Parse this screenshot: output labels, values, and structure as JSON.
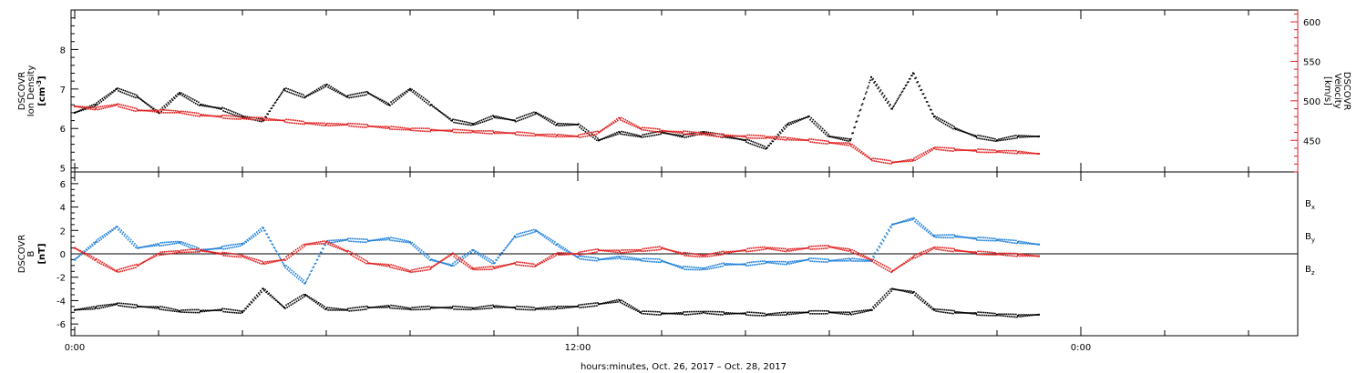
{
  "colors": {
    "axis": "#000000",
    "density": "#000000",
    "velocity": "#e02020",
    "bx": "#000000",
    "by": "#1e7fd8",
    "bz": "#e02020"
  },
  "chart_data": [
    {
      "type": "scatter",
      "panel": "plasma",
      "ylabel_left": [
        "DSCOVR",
        "Ion Density",
        "[cm",
        "-3",
        "]"
      ],
      "ylabel_right": [
        "DSCOVR",
        "Velocity",
        "[km/s]"
      ],
      "ylim_left": [
        4.9,
        9.0
      ],
      "ylim_right": [
        410,
        615
      ],
      "yticks_left": [
        "5",
        "6",
        "7",
        "8"
      ],
      "yticks_right": [
        "450",
        "500",
        "550",
        "600"
      ],
      "series": [
        {
          "name": "Ion Density",
          "axis": "left",
          "x_hours": [
            0,
            0.5,
            1,
            1.5,
            2,
            2.5,
            3,
            3.5,
            4,
            4.5,
            5,
            5.5,
            6,
            6.5,
            7,
            7.5,
            8,
            8.5,
            9,
            9.5,
            10,
            10.5,
            11,
            11.5,
            12,
            12.5,
            13,
            13.5,
            14,
            14.5,
            15,
            15.5,
            16,
            16.5,
            17,
            17.5,
            18,
            18.5,
            19,
            19.5,
            20,
            20.5,
            21,
            21.5,
            22,
            22.5,
            23
          ],
          "y": [
            6.4,
            6.6,
            7.0,
            6.8,
            6.4,
            6.9,
            6.6,
            6.5,
            6.3,
            6.2,
            7.0,
            6.8,
            7.1,
            6.8,
            6.9,
            6.6,
            7.0,
            6.6,
            6.2,
            6.1,
            6.3,
            6.2,
            6.4,
            6.1,
            6.1,
            5.7,
            5.9,
            5.8,
            5.9,
            5.8,
            5.9,
            5.8,
            5.7,
            5.5,
            6.1,
            6.3,
            5.8,
            5.7,
            7.3,
            6.5,
            7.4,
            6.3,
            6.0,
            5.8,
            5.7,
            5.8,
            5.8
          ]
        },
        {
          "name": "Velocity",
          "axis": "right",
          "x_hours": [
            0,
            0.5,
            1,
            1.5,
            2,
            2.5,
            3,
            3.5,
            4,
            4.5,
            5,
            5.5,
            6,
            6.5,
            7,
            7.5,
            8,
            8.5,
            9,
            9.5,
            10,
            10.5,
            11,
            11.5,
            12,
            12.5,
            13,
            13.5,
            14,
            14.5,
            15,
            15.5,
            16,
            16.5,
            17,
            17.5,
            18,
            18.5,
            19,
            19.5,
            20,
            20.5,
            21,
            21.5,
            22,
            22.5,
            23
          ],
          "y": [
            493,
            490,
            495,
            488,
            487,
            486,
            482,
            480,
            478,
            477,
            475,
            472,
            470,
            470,
            468,
            466,
            464,
            463,
            462,
            461,
            460,
            459,
            457,
            456,
            455,
            460,
            478,
            465,
            462,
            460,
            458,
            456,
            455,
            454,
            452,
            450,
            447,
            445,
            426,
            422,
            425,
            440,
            438,
            437,
            436,
            435,
            433
          ]
        }
      ]
    },
    {
      "type": "scatter",
      "panel": "magnetic",
      "ylabel_left": [
        "DSCOVR",
        "B",
        "[nT]"
      ],
      "ylim": [
        -7.0,
        7.0
      ],
      "yticks": [
        "-6",
        "-4",
        "-2",
        "0",
        "2",
        "4",
        "6"
      ],
      "zero_line": true,
      "legend": [
        "B",
        "B",
        "B"
      ],
      "legend_sub": [
        "x",
        "y",
        "z"
      ],
      "series": [
        {
          "name": "Bx",
          "x_hours": [
            0,
            0.5,
            1,
            1.5,
            2,
            2.5,
            3,
            3.5,
            4,
            4.5,
            5,
            5.5,
            6,
            6.5,
            7,
            7.5,
            8,
            8.5,
            9,
            9.5,
            10,
            10.5,
            11,
            11.5,
            12,
            12.5,
            13,
            13.5,
            14,
            14.5,
            15,
            15.5,
            16,
            16.5,
            17,
            17.5,
            18,
            18.5,
            19,
            19.5,
            20,
            20.5,
            21,
            21.5,
            22,
            22.5,
            23
          ],
          "y": [
            -4.8,
            -4.6,
            -4.3,
            -4.5,
            -4.6,
            -4.9,
            -4.9,
            -4.8,
            -5.0,
            -3.0,
            -4.6,
            -3.5,
            -4.7,
            -4.8,
            -4.6,
            -4.5,
            -4.7,
            -4.6,
            -4.6,
            -4.7,
            -4.5,
            -4.6,
            -4.7,
            -4.6,
            -4.5,
            -4.3,
            -4.0,
            -5.0,
            -5.1,
            -5.1,
            -5.0,
            -5.1,
            -5.1,
            -5.2,
            -5.1,
            -5.0,
            -5.0,
            -5.1,
            -4.8,
            -3.0,
            -3.3,
            -4.8,
            -5.0,
            -5.1,
            -5.2,
            -5.3,
            -5.2
          ]
        },
        {
          "name": "By",
          "x_hours": [
            0,
            0.5,
            1,
            1.5,
            2,
            2.5,
            3,
            3.5,
            4,
            4.5,
            5,
            5.5,
            6,
            6.5,
            7,
            7.5,
            8,
            8.5,
            9,
            9.5,
            10,
            10.5,
            11,
            11.5,
            12,
            12.5,
            13,
            13.5,
            14,
            14.5,
            15,
            15.5,
            16,
            16.5,
            17,
            17.5,
            18,
            18.5,
            19,
            19.5,
            20,
            20.5,
            21,
            21.5,
            22,
            22.5,
            23
          ],
          "y": [
            -0.5,
            1.0,
            2.3,
            0.5,
            0.8,
            1.0,
            0.3,
            0.5,
            0.8,
            2.2,
            -1.0,
            -2.5,
            1.0,
            1.2,
            1.1,
            1.3,
            1.0,
            -0.5,
            -1.0,
            0.3,
            -0.8,
            1.5,
            2.0,
            0.8,
            -0.3,
            -0.5,
            -0.3,
            -0.5,
            -0.6,
            -1.2,
            -1.3,
            -0.9,
            -0.9,
            -0.7,
            -0.8,
            -0.5,
            -0.6,
            -0.5,
            -0.6,
            2.5,
            3.0,
            1.5,
            1.5,
            1.3,
            1.2,
            1.0,
            0.8
          ]
        },
        {
          "name": "Bz",
          "x_hours": [
            0,
            0.5,
            1,
            1.5,
            2,
            2.5,
            3,
            3.5,
            4,
            4.5,
            5,
            5.5,
            6,
            6.5,
            7,
            7.5,
            8,
            8.5,
            9,
            9.5,
            10,
            10.5,
            11,
            11.5,
            12,
            12.5,
            13,
            13.5,
            14,
            14.5,
            15,
            15.5,
            16,
            16.5,
            17,
            17.5,
            18,
            18.5,
            19,
            19.5,
            20,
            20.5,
            21,
            21.5,
            22,
            22.5,
            23
          ],
          "y": [
            0.5,
            -0.5,
            -1.5,
            -1.0,
            0.0,
            0.2,
            0.3,
            0.0,
            -0.2,
            -0.8,
            -0.5,
            0.8,
            1.0,
            0.2,
            -0.8,
            -1.0,
            -1.5,
            -1.2,
            0.0,
            -1.3,
            -1.2,
            -0.8,
            -1.0,
            0.0,
            0.0,
            0.3,
            0.2,
            0.3,
            0.5,
            0.0,
            -0.2,
            0.1,
            0.3,
            0.5,
            0.3,
            0.5,
            0.6,
            0.3,
            -0.5,
            -1.5,
            -0.3,
            0.5,
            0.3,
            0.1,
            0.0,
            -0.1,
            -0.2
          ]
        }
      ]
    }
  ],
  "xaxis": {
    "tick_labels": [
      "0:00",
      "12:00",
      "0:00"
    ],
    "label": "hours:minutes, Oct. 26, 2017 – Oct. 28, 2017"
  }
}
